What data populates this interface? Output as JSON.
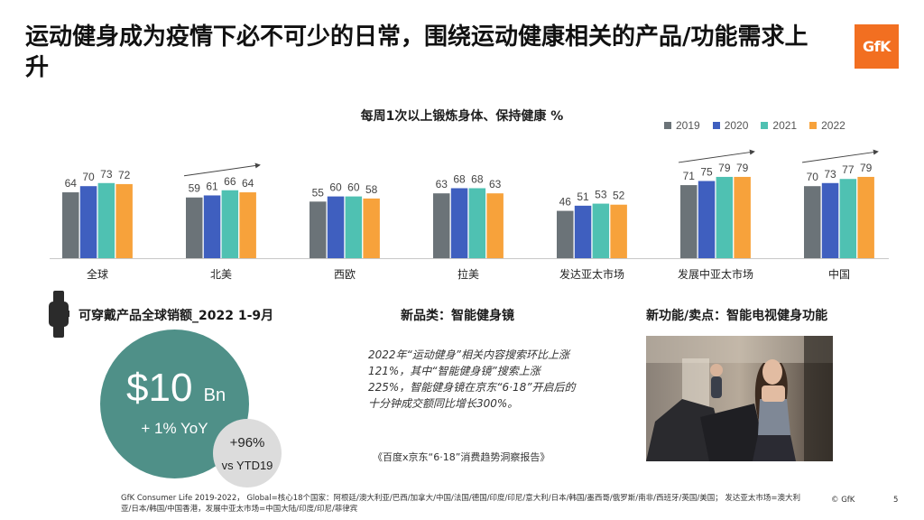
{
  "title": "运动健身成为疫情下必不可少的日常，围绕运动健康相关的产品/功能需求上升",
  "logo": "GfK",
  "chart_data": {
    "type": "bar",
    "title": "每周1次以上锻炼身体、保持健康 %",
    "categories": [
      "全球",
      "北美",
      "西欧",
      "拉美",
      "发达亚太市场",
      "发展中亚太市场",
      "中国"
    ],
    "series": [
      {
        "name": "2019",
        "color": "#6b7378",
        "values": [
          64,
          59,
          55,
          63,
          46,
          71,
          70
        ]
      },
      {
        "name": "2020",
        "color": "#3f5fbf",
        "values": [
          70,
          61,
          60,
          68,
          51,
          75,
          73
        ]
      },
      {
        "name": "2021",
        "color": "#4fc1b2",
        "values": [
          73,
          66,
          60,
          68,
          53,
          79,
          77
        ]
      },
      {
        "name": "2022",
        "color": "#f7a23b",
        "values": [
          72,
          64,
          58,
          63,
          52,
          79,
          79
        ]
      }
    ],
    "trend_arrows": [
      "北美",
      "发展中亚太市场",
      "中国"
    ],
    "ylim": [
      0,
      100
    ],
    "grid": false,
    "legend": "top-right"
  },
  "wearables": {
    "title": "可穿戴产品全球销额_2022 1-9月",
    "amount": "$10",
    "unit": "Bn",
    "yoy": "+ 1% YoY",
    "growth": "+96%",
    "growth_label": "vs YTD19"
  },
  "new_products": {
    "title": "新品类：智能健身镜",
    "quote": "2022年“运动健身”相关内容搜索环比上涨121%，其中“智能健身镜”搜索上涨225%，智能健身镜在京东“6·18”开启后的十分钟成交额同比增长300%。",
    "source": "《百度x京东“6·18”消费趋势洞察报告》"
  },
  "new_features": {
    "title": "新功能/卖点：智能电视健身功能"
  },
  "footer": {
    "note": "GfK Consumer Life 2019-2022， Global=核心18个国家：阿根廷/澳大利亚/巴西/加拿大/中国/法国/德国/印度/印尼/意大利/日本/韩国/墨西哥/俄罗斯/南非/西班牙/英国/美国； 发达亚太市场=澳大利亚/日本/韩国/中国香港，发展中亚太市场=中国大陆/印度/印尼/菲律宾",
    "copyright": "© GfK",
    "page": "5"
  }
}
